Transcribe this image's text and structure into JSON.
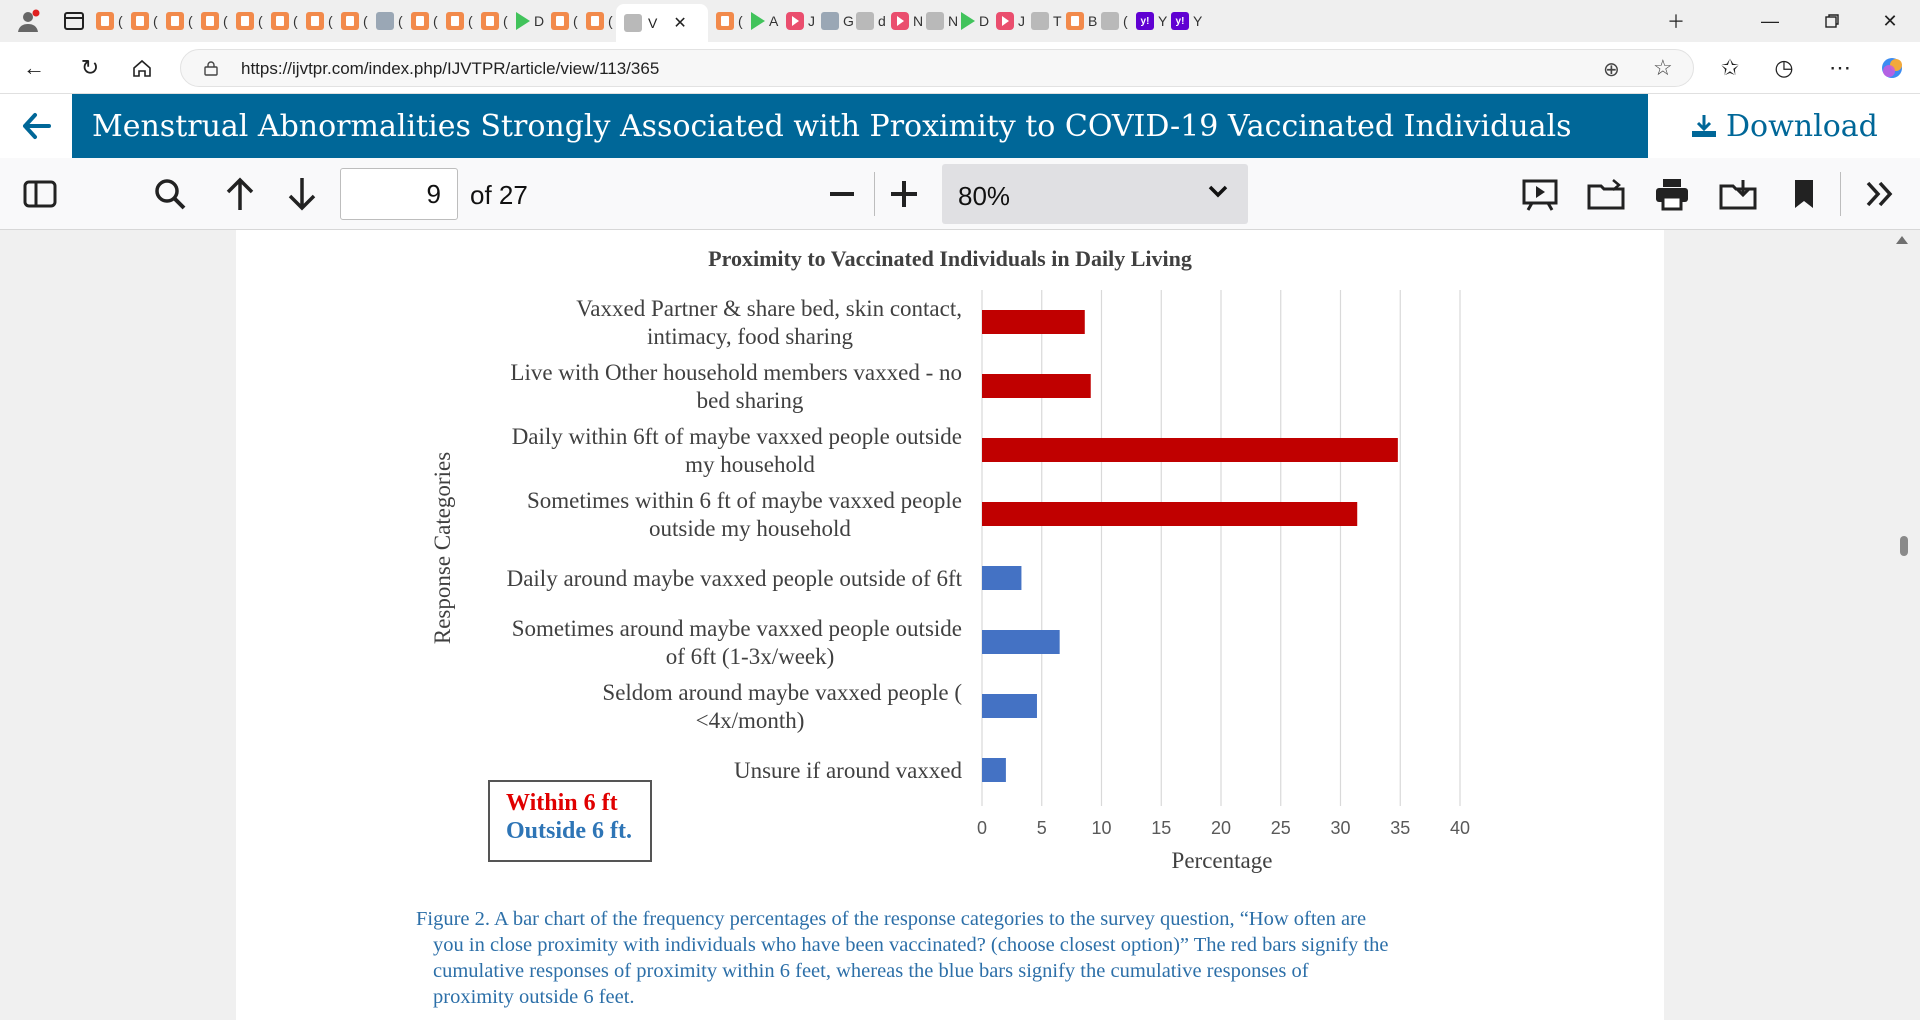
{
  "browser": {
    "active_tab_label": "V",
    "url": "https://ijvtpr.com/index.php/IJVTPR/article/view/113/365",
    "tabs": [
      {
        "icon": "pdf-icon",
        "letter": "("
      },
      {
        "icon": "pdf-icon",
        "letter": "("
      },
      {
        "icon": "pdf-icon",
        "letter": "("
      },
      {
        "icon": "pdf-icon",
        "letter": "("
      },
      {
        "icon": "pdf-icon",
        "letter": "("
      },
      {
        "icon": "pdf-icon",
        "letter": "("
      },
      {
        "icon": "pdf-icon",
        "letter": "("
      },
      {
        "icon": "pdf-icon",
        "letter": "("
      },
      {
        "icon": "misc-icon",
        "letter": "("
      },
      {
        "icon": "pdf-icon",
        "letter": "("
      },
      {
        "icon": "pdf-icon",
        "letter": "("
      },
      {
        "icon": "pdf-icon",
        "letter": "("
      },
      {
        "icon": "play-icon",
        "letter": "D"
      },
      {
        "icon": "pdf-icon",
        "letter": "("
      },
      {
        "icon": "pdf-icon",
        "letter": "("
      },
      {
        "icon": "pdf-icon",
        "letter": "("
      },
      {
        "icon": "play-icon",
        "letter": "A"
      },
      {
        "icon": "youtube-icon",
        "letter": "J"
      },
      {
        "icon": "misc-icon",
        "letter": "G"
      },
      {
        "icon": "search-icon",
        "letter": "d"
      },
      {
        "icon": "youtube-icon",
        "letter": "N"
      },
      {
        "icon": "grey-icon",
        "letter": "N"
      },
      {
        "icon": "play-icon",
        "letter": "D"
      },
      {
        "icon": "youtube-icon",
        "letter": "J"
      },
      {
        "icon": "grey-icon",
        "letter": "T"
      },
      {
        "icon": "pdf-icon",
        "letter": "B"
      },
      {
        "icon": "grey-icon",
        "letter": "("
      },
      {
        "icon": "yahoo-icon",
        "letter": "Y"
      },
      {
        "icon": "yahoo-icon",
        "letter": "Y"
      }
    ]
  },
  "article": {
    "title": "Menstrual Abnormalities Strongly Associated with Proximity to COVID-19 Vaccinated Individuals",
    "download_label": "Download"
  },
  "pdf_toolbar": {
    "page_number": "9",
    "page_total": "of 27",
    "zoom": "80%"
  },
  "figure": {
    "legend_within": "Within 6 ft",
    "legend_outside": "Outside 6 ft.",
    "caption_lines": [
      "Figure 2. A bar chart of the frequency percentages of the response categories to the survey question, “How often are",
      "you in close proximity with individuals who have been vaccinated? (choose closest option)” The red bars signify the",
      "cumulative responses of proximity within 6 feet, whereas the blue bars signify the cumulative responses of",
      "proximity outside 6 feet."
    ],
    "colors": {
      "within": "#c00000",
      "outside": "#4472c4",
      "legend_within_text": "#e00000",
      "legend_outside_text": "#2e75b6"
    }
  },
  "chart_data": {
    "type": "bar",
    "orientation": "horizontal",
    "title": "Proximity to Vaccinated Individuals in Daily Living",
    "xlabel": "Percentage",
    "ylabel": "Response Categories",
    "xlim": [
      0,
      40
    ],
    "xticks": [
      "0",
      "5",
      "10",
      "15",
      "20",
      "25",
      "30",
      "35",
      "40"
    ],
    "grid": "vertical",
    "categories": [
      [
        "Vaxxed Partner & share bed, skin contact,",
        "intimacy, food sharing"
      ],
      [
        "Live with Other household members vaxxed - no",
        "bed sharing"
      ],
      [
        "Daily within 6ft of maybe vaxxed people outside",
        "my household"
      ],
      [
        "Sometimes within 6 ft of maybe vaxxed people",
        "outside my household"
      ],
      [
        "Daily around maybe vaxxed people outside of 6ft"
      ],
      [
        "Sometimes around maybe vaxxed people outside",
        "of 6ft (1-3x/week)"
      ],
      [
        "Seldom around maybe vaxxed people (",
        "<4x/month)"
      ],
      [
        "Unsure if around vaxxed"
      ]
    ],
    "values": [
      8.6,
      9.1,
      34.8,
      31.4,
      3.3,
      6.5,
      4.6,
      2.0
    ],
    "group": [
      "within",
      "within",
      "within",
      "within",
      "outside",
      "outside",
      "outside",
      "outside"
    ],
    "legend": [
      "Within 6 ft",
      "Outside 6 ft."
    ],
    "legend_placement": "bottom-left"
  }
}
